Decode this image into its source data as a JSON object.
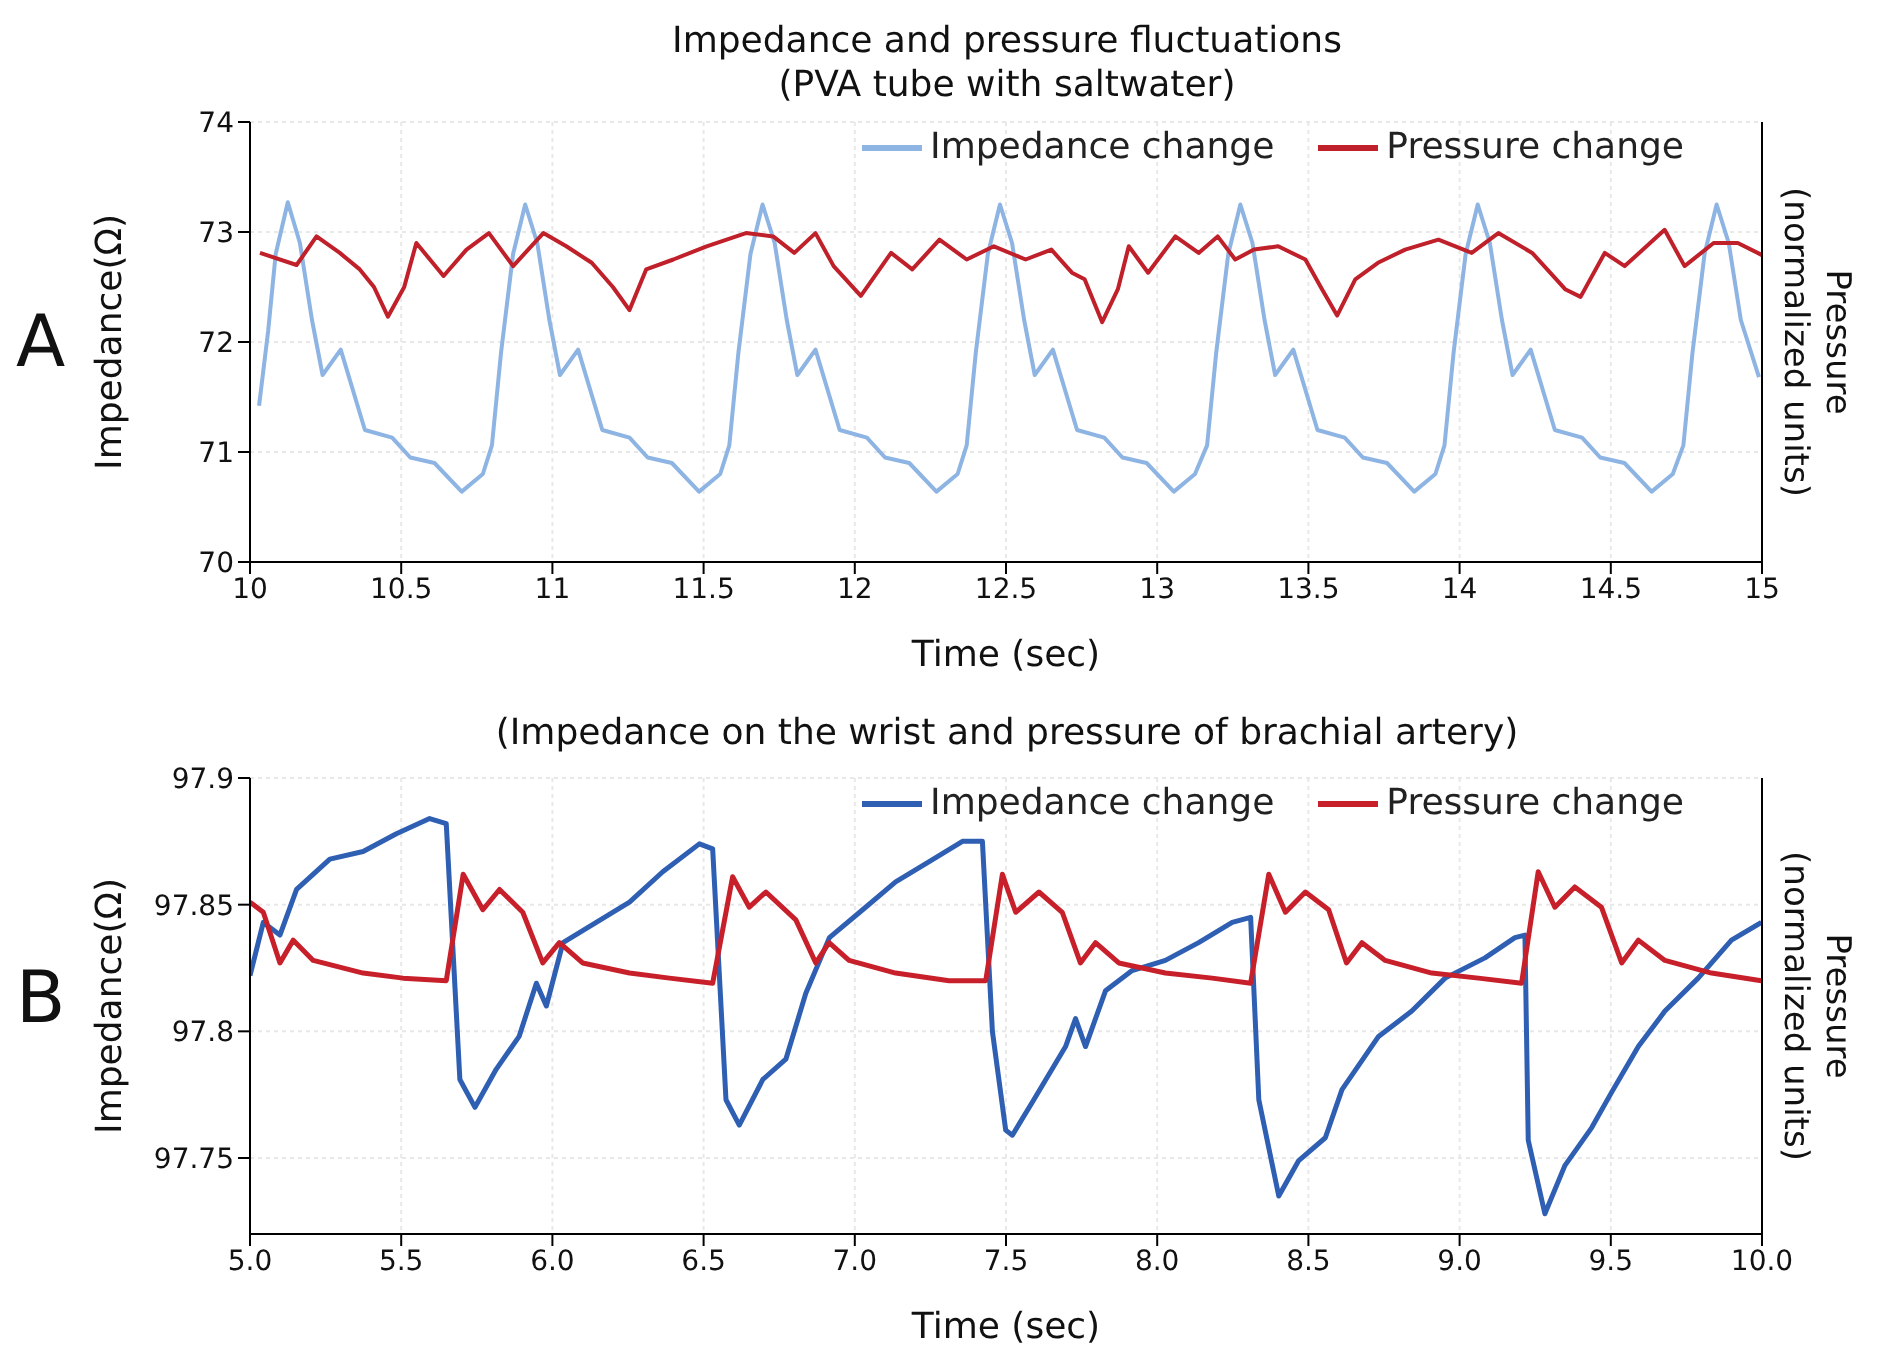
{
  "chart_data": [
    {
      "type": "line",
      "title": "Impedance and pressure fluctuations",
      "subtitle": "(PVA tube with saltwater)",
      "xlabel": "Time (sec)",
      "ylabel": "Impedance(Ω)",
      "y2label": "Pressure\n(normalized units)",
      "annotations": [
        "A"
      ],
      "xlim": [
        10,
        15
      ],
      "xticks": [
        10,
        10.5,
        11,
        11.5,
        12,
        12.5,
        13,
        13.5,
        14,
        14.5,
        15
      ],
      "ylim": [
        70,
        74
      ],
      "yticks": [
        70,
        71,
        72,
        73,
        74
      ],
      "grid": true,
      "legend": "top right",
      "series": [
        {
          "name": "Impedance change",
          "color": "#8db4e2",
          "x": [
            10.03,
            10.06,
            10.085,
            10.125,
            10.165,
            10.205,
            10.24,
            10.3,
            10.38,
            10.47,
            10.53,
            10.61,
            10.7,
            10.77,
            10.8,
            10.83,
            10.87,
            10.91,
            10.95,
            10.99,
            11.025,
            11.085,
            11.165,
            11.255,
            11.315,
            11.395,
            11.485,
            11.555,
            11.585,
            11.615,
            11.655,
            11.695,
            11.735,
            11.775,
            11.81,
            11.87,
            11.95,
            12.04,
            12.1,
            12.18,
            12.27,
            12.34,
            12.37,
            12.4,
            12.44,
            12.48,
            12.52,
            12.56,
            12.595,
            12.655,
            12.735,
            12.825,
            12.885,
            12.965,
            13.055,
            13.125,
            13.165,
            13.195,
            13.235,
            13.275,
            13.315,
            13.355,
            13.39,
            13.45,
            13.53,
            13.62,
            13.68,
            13.76,
            13.85,
            13.92,
            13.95,
            13.98,
            14.02,
            14.06,
            14.1,
            14.14,
            14.175,
            14.235,
            14.315,
            14.405,
            14.465,
            14.545,
            14.635,
            14.705,
            14.74,
            14.77,
            14.81,
            14.85,
            14.89,
            14.93,
            14.99
          ],
          "values": [
            71.42,
            72.1,
            72.8,
            73.27,
            72.9,
            72.2,
            71.7,
            71.93,
            71.2,
            71.13,
            70.95,
            70.9,
            70.64,
            70.8,
            71.06,
            71.9,
            72.8,
            73.25,
            72.9,
            72.2,
            71.7,
            71.93,
            71.2,
            71.13,
            70.95,
            70.9,
            70.64,
            70.8,
            71.06,
            71.9,
            72.8,
            73.25,
            72.9,
            72.2,
            71.7,
            71.93,
            71.2,
            71.13,
            70.95,
            70.9,
            70.64,
            70.8,
            71.06,
            71.9,
            72.8,
            73.25,
            72.9,
            72.2,
            71.7,
            71.93,
            71.2,
            71.13,
            70.95,
            70.9,
            70.64,
            70.8,
            71.06,
            71.9,
            72.8,
            73.25,
            72.9,
            72.2,
            71.7,
            71.93,
            71.2,
            71.13,
            70.95,
            70.9,
            70.64,
            70.8,
            71.06,
            71.9,
            72.8,
            73.25,
            72.9,
            72.2,
            71.7,
            71.93,
            71.2,
            71.13,
            70.95,
            70.9,
            70.64,
            70.8,
            71.06,
            71.9,
            72.8,
            73.25,
            72.9,
            72.2,
            71.68
          ]
        },
        {
          "name": "Pressure change",
          "color": "#c0202a",
          "x": [
            10.033,
            10.154,
            10.22,
            10.297,
            10.363,
            10.41,
            10.456,
            10.51,
            10.55,
            10.64,
            10.716,
            10.79,
            10.87,
            10.97,
            11.046,
            11.13,
            11.2,
            11.255,
            11.31,
            11.4,
            11.51,
            11.64,
            11.73,
            11.8,
            11.87,
            11.93,
            12.02,
            12.12,
            12.19,
            12.28,
            12.37,
            12.46,
            12.565,
            12.65,
            12.718,
            12.76,
            12.818,
            12.87,
            12.906,
            12.97,
            13.06,
            13.137,
            13.2,
            13.258,
            13.32,
            13.4,
            13.49,
            13.545,
            13.595,
            13.655,
            13.73,
            13.82,
            13.93,
            14.04,
            14.128,
            14.24,
            14.349,
            14.4,
            14.48,
            14.546,
            14.678,
            14.744,
            14.84,
            14.92,
            15
          ],
          "values": [
            72.81,
            72.7,
            72.96,
            72.81,
            72.66,
            72.5,
            72.23,
            72.5,
            72.9,
            72.6,
            72.84,
            72.99,
            72.69,
            72.99,
            72.87,
            72.72,
            72.5,
            72.29,
            72.66,
            72.75,
            72.87,
            72.99,
            72.96,
            72.81,
            72.99,
            72.69,
            72.42,
            72.81,
            72.66,
            72.93,
            72.75,
            72.87,
            72.75,
            72.84,
            72.63,
            72.57,
            72.18,
            72.48,
            72.87,
            72.63,
            72.96,
            72.81,
            72.96,
            72.75,
            72.84,
            72.87,
            72.75,
            72.48,
            72.24,
            72.57,
            72.72,
            72.84,
            72.93,
            72.81,
            72.99,
            72.81,
            72.48,
            72.41,
            72.81,
            72.69,
            73.02,
            72.69,
            72.9,
            72.9,
            72.79
          ]
        }
      ]
    },
    {
      "type": "line",
      "title": "(Impedance on the wrist and pressure of brachial artery)",
      "xlabel": "Time (sec)",
      "ylabel": "Impedance(Ω)",
      "y2label": "Pressure\n(normalized units)",
      "annotations": [
        "B"
      ],
      "xlim": [
        5,
        10
      ],
      "xticks": [
        {
          "value": 5,
          "label": "5.0"
        },
        {
          "value": 5.5,
          "label": "5.5"
        },
        {
          "value": 6,
          "label": "6.0"
        },
        {
          "value": 6.5,
          "label": "6.5"
        },
        {
          "value": 7,
          "label": "7.0"
        },
        {
          "value": 7.5,
          "label": "7.5"
        },
        {
          "value": 8,
          "label": "8.0"
        },
        {
          "value": 8.5,
          "label": "8.5"
        },
        {
          "value": 9,
          "label": "9.0"
        },
        {
          "value": 9.5,
          "label": "9.5"
        },
        {
          "value": 10,
          "label": "10.0"
        }
      ],
      "ylim": [
        97.72,
        97.9
      ],
      "yticks": [
        97.75,
        97.8,
        97.85,
        97.9
      ],
      "grid": true,
      "legend": "top right",
      "series": [
        {
          "name": "Impedance change",
          "color": "#2f5fb3",
          "x": [
            5,
            5.044,
            5.099,
            5.154,
            5.264,
            5.374,
            5.484,
            5.594,
            5.649,
            5.694,
            5.744,
            5.814,
            5.89,
            5.947,
            5.98,
            6.035,
            6.145,
            6.255,
            6.365,
            6.486,
            6.53,
            6.574,
            6.618,
            6.696,
            6.772,
            6.838,
            6.916,
            7.026,
            7.135,
            7.246,
            7.356,
            7.422,
            7.455,
            7.499,
            7.521,
            7.587,
            7.697,
            7.73,
            7.763,
            7.829,
            7.917,
            8.027,
            8.137,
            8.248,
            8.309,
            8.336,
            8.402,
            8.468,
            8.556,
            8.611,
            8.732,
            8.842,
            8.952,
            9.084,
            9.183,
            9.216,
            9.227,
            9.282,
            9.348,
            9.437,
            9.503,
            9.591,
            9.679,
            9.789,
            9.899,
            9.998
          ],
          "values": [
            97.822,
            97.843,
            97.838,
            97.856,
            97.868,
            97.871,
            97.878,
            97.884,
            97.882,
            97.781,
            97.77,
            97.785,
            97.798,
            97.819,
            97.81,
            97.835,
            97.843,
            97.851,
            97.863,
            97.874,
            97.872,
            97.773,
            97.763,
            97.781,
            97.789,
            97.815,
            97.837,
            97.848,
            97.859,
            97.867,
            97.875,
            97.875,
            97.8,
            97.761,
            97.759,
            97.772,
            97.794,
            97.805,
            97.794,
            97.816,
            97.824,
            97.828,
            97.835,
            97.843,
            97.845,
            97.773,
            97.735,
            97.749,
            97.758,
            97.777,
            97.798,
            97.808,
            97.821,
            97.829,
            97.837,
            97.838,
            97.757,
            97.728,
            97.747,
            97.762,
            97.776,
            97.794,
            97.808,
            97.821,
            97.836,
            97.843
          ]
        },
        {
          "name": "Pressure change",
          "color": "#c8202a",
          "x": [
            5,
            5.044,
            5.099,
            5.143,
            5.209,
            5.374,
            5.506,
            5.649,
            5.705,
            5.77,
            5.825,
            5.902,
            5.968,
            6.023,
            6.1,
            6.255,
            6.387,
            6.53,
            6.596,
            6.651,
            6.706,
            6.805,
            6.871,
            6.915,
            6.981,
            7.135,
            7.312,
            7.433,
            7.488,
            7.532,
            7.609,
            7.686,
            7.746,
            7.796,
            7.873,
            8.027,
            8.182,
            8.309,
            8.369,
            8.424,
            8.49,
            8.567,
            8.626,
            8.677,
            8.754,
            8.908,
            9.062,
            9.205,
            9.26,
            9.315,
            9.381,
            9.469,
            9.536,
            9.591,
            9.679,
            9.833,
            9.998
          ],
          "values": [
            97.851,
            97.847,
            97.827,
            97.836,
            97.828,
            97.823,
            97.821,
            97.82,
            97.862,
            97.848,
            97.856,
            97.847,
            97.827,
            97.835,
            97.827,
            97.823,
            97.821,
            97.819,
            97.861,
            97.849,
            97.855,
            97.844,
            97.827,
            97.835,
            97.828,
            97.823,
            97.82,
            97.82,
            97.862,
            97.847,
            97.855,
            97.847,
            97.827,
            97.835,
            97.827,
            97.823,
            97.821,
            97.819,
            97.862,
            97.847,
            97.855,
            97.848,
            97.827,
            97.835,
            97.828,
            97.823,
            97.821,
            97.819,
            97.863,
            97.849,
            97.857,
            97.849,
            97.827,
            97.836,
            97.828,
            97.823,
            97.82
          ]
        }
      ]
    }
  ]
}
